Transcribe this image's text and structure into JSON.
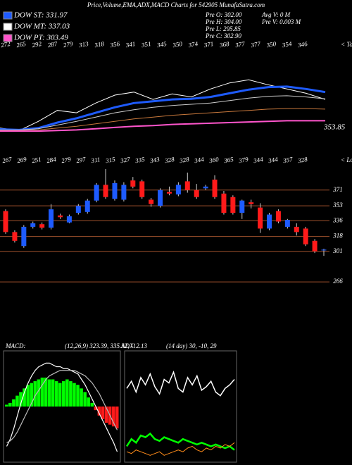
{
  "header": {
    "title": "Price,Volume,EMA,ADX,MACD Charts for 542905 MunafaSutra.com",
    "legend": [
      {
        "label": "DOW ST: 331.97",
        "color": "#1e5bff"
      },
      {
        "label": "DOW MT: 337.03",
        "color": "#ffffff"
      },
      {
        "label": "DOW PT: 303.49",
        "color": "#ff55cc"
      }
    ],
    "info_left": [
      "Pre  O: 302.00",
      "Pre  H: 304.00",
      "Pre  L: 295.85",
      "Pre  C: 302.90"
    ],
    "info_right": [
      "Avg V: 0  M",
      "Pre  V: 0.003 M"
    ]
  },
  "chart_data": [
    {
      "type": "line",
      "top_labels": [
        "272",
        "265",
        "292",
        "287",
        "279",
        "313",
        "318",
        "356",
        "341",
        "351",
        "345",
        "350",
        "374",
        "371",
        "368",
        "377",
        "377",
        "350",
        "354",
        "346"
      ],
      "side_label": "< Tops",
      "last_label": "353.85",
      "ylim": [
        250,
        400
      ],
      "series": [
        {
          "color": "#ffffff",
          "width": 1,
          "values": [
            271,
            267,
            282,
            300,
            296,
            312,
            325,
            330,
            318,
            327,
            322,
            335,
            345,
            350,
            342,
            335,
            328,
            318
          ]
        },
        {
          "color": "#1e5bff",
          "width": 3,
          "values": [
            269,
            268,
            271,
            280,
            287,
            296,
            305,
            312,
            315,
            318,
            319,
            322,
            328,
            334,
            338,
            339,
            335,
            330
          ]
        },
        {
          "color": "#cccccc",
          "width": 1,
          "values": [
            268,
            268,
            270,
            276,
            282,
            289,
            296,
            301,
            305,
            308,
            310,
            312,
            316,
            320,
            323,
            324,
            322,
            319
          ]
        },
        {
          "color": "#c8783c",
          "width": 1,
          "values": [
            267,
            267,
            268,
            271,
            274,
            278,
            282,
            286,
            289,
            292,
            294,
            296,
            298,
            300,
            302,
            303,
            303,
            302
          ]
        },
        {
          "color": "#ff55cc",
          "width": 2,
          "values": [
            266,
            266,
            266,
            267,
            268,
            270,
            272,
            274,
            275,
            277,
            278,
            279,
            280,
            281,
            282,
            283,
            283,
            283
          ]
        }
      ]
    },
    {
      "type": "candlestick",
      "top_labels": [
        "267",
        "269",
        "251",
        "284",
        "279",
        "297",
        "311",
        "315",
        "327",
        "335",
        "343",
        "328",
        "328",
        "344",
        "360",
        "365",
        "379",
        "344",
        "344",
        "357",
        "328"
      ],
      "side_label": "< Lows",
      "ylim": [
        250,
        395
      ],
      "yticks": [
        371,
        353,
        336,
        318,
        301,
        266
      ],
      "up_color": "#1e5bff",
      "down_color": "#ff1a1a",
      "grid_color": "#a0522d",
      "open": [
        347,
        323,
        307,
        329,
        332,
        328,
        342,
        334,
        345,
        346,
        359,
        377,
        361,
        360,
        382,
        381,
        360,
        353,
        369,
        366,
        381,
        371,
        373,
        383,
        367,
        363,
        345,
        357,
        351,
        327,
        347,
        329,
        329,
        327,
        313,
        302
      ],
      "high": [
        349,
        325,
        331,
        335,
        334,
        355,
        344,
        343,
        355,
        361,
        379,
        395,
        382,
        380,
        386,
        383,
        362,
        373,
        375,
        380,
        391,
        378,
        377,
        388,
        370,
        365,
        360,
        360,
        356,
        345,
        349,
        338,
        333,
        329,
        315,
        304
      ],
      "low": [
        321,
        311,
        305,
        327,
        326,
        326,
        338,
        333,
        343,
        344,
        357,
        361,
        359,
        358,
        373,
        361,
        352,
        351,
        365,
        364,
        368,
        361,
        371,
        361,
        343,
        343,
        338,
        350,
        322,
        325,
        333,
        327,
        319,
        307,
        299,
        295.85
      ],
      "close": [
        323,
        313,
        329,
        333,
        328,
        349,
        340,
        341,
        353,
        359,
        377,
        363,
        379,
        377,
        375,
        363,
        355,
        371,
        367,
        377,
        371,
        363,
        375,
        363,
        345,
        345,
        359,
        355,
        327,
        343,
        335,
        337,
        323,
        309,
        301,
        302.9
      ]
    },
    {
      "type": "macd",
      "label": "MACD:",
      "params": "(12,26,9) 323.39, 335.52, -12.13",
      "ylim": [
        -30,
        30
      ],
      "up_color": "#00ff00",
      "down_color": "#ff1a1a",
      "histogram": [
        1,
        2,
        4,
        6,
        8,
        10,
        12,
        13,
        14,
        15,
        16,
        16,
        15,
        15,
        14,
        13,
        14,
        15,
        14,
        13,
        12,
        10,
        8,
        5,
        2,
        -2,
        -5,
        -7,
        -9,
        -10,
        -11,
        -12.13
      ],
      "series": [
        {
          "color": "#ffffff",
          "values": [
            -22,
            -18,
            -12,
            -5,
            2,
            8,
            13,
            17,
            20,
            22,
            23,
            24,
            24,
            23,
            22,
            22,
            21,
            21,
            20,
            19,
            18,
            15,
            12,
            8,
            4,
            0,
            -4,
            -8,
            -12,
            -16,
            -20,
            -25
          ]
        },
        {
          "color": "#bbbbbb",
          "values": [
            -20,
            -19,
            -17,
            -14,
            -10,
            -6,
            -2,
            2,
            6,
            9,
            12,
            15,
            17,
            18,
            19,
            20,
            20,
            20,
            20,
            20,
            19,
            18,
            17,
            15,
            13,
            10,
            7,
            3,
            -1,
            -5,
            -9,
            -13
          ]
        }
      ]
    },
    {
      "type": "line",
      "label": "ADX",
      "params": "(14  day) 30,  -10,  29",
      "ylim": [
        0,
        60
      ],
      "series": [
        {
          "color": "#ffffff",
          "width": 1.5,
          "values": [
            40,
            44,
            38,
            46,
            42,
            48,
            41,
            37,
            45,
            43,
            49,
            40,
            38,
            46,
            42,
            47,
            39,
            41,
            44,
            38,
            36,
            40,
            42,
            45
          ]
        },
        {
          "color": "#00ff00",
          "width": 2.5,
          "values": [
            8,
            12,
            10,
            14,
            13,
            15,
            12,
            11,
            13,
            12,
            11,
            10,
            12,
            11,
            10,
            9,
            10,
            9,
            8,
            9,
            8,
            7,
            8,
            6
          ]
        },
        {
          "color": "#ff8c1a",
          "width": 1,
          "values": [
            5,
            4,
            6,
            5,
            4,
            3,
            4,
            5,
            3,
            4,
            5,
            6,
            5,
            7,
            8,
            6,
            5,
            7,
            6,
            8,
            7,
            9,
            8,
            10
          ]
        }
      ]
    }
  ]
}
